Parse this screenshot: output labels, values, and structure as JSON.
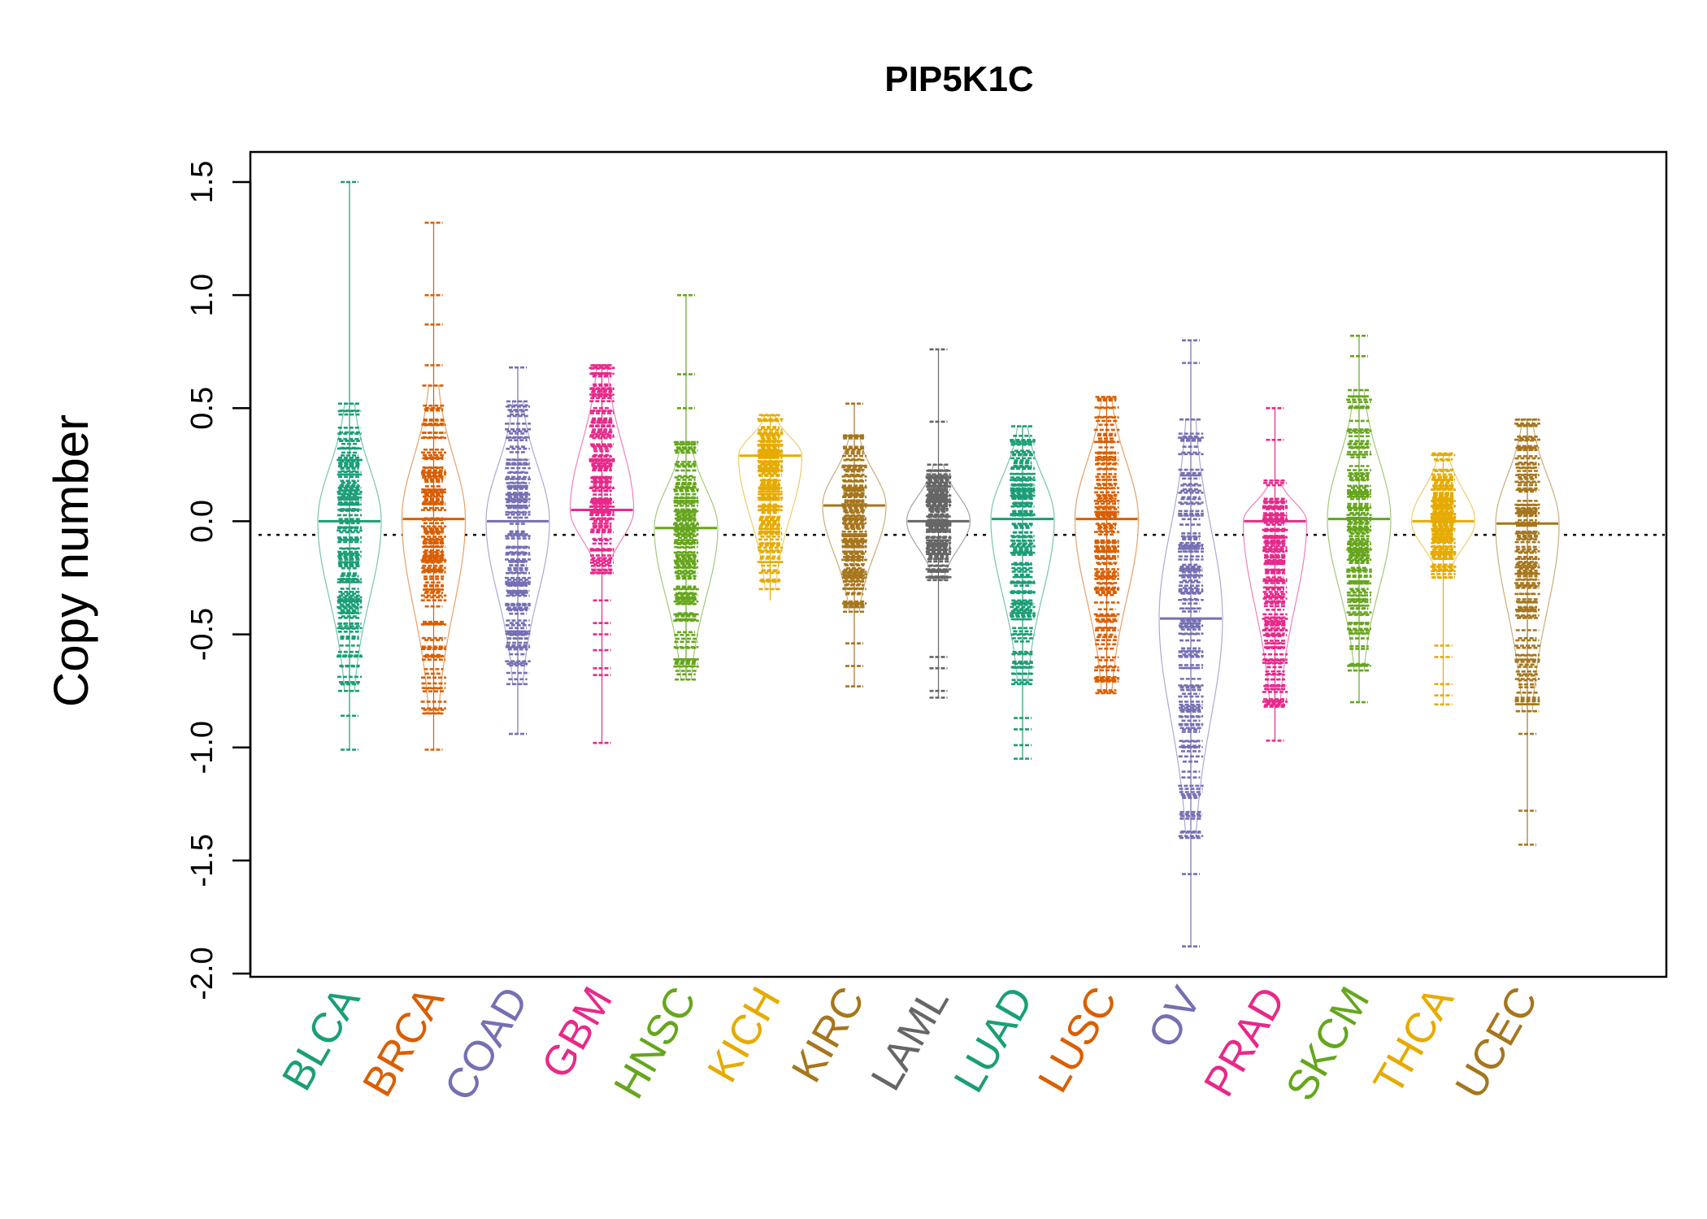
{
  "chart_data": {
    "type": "beanplot",
    "title": "PIP5K1C",
    "xlabel": "",
    "ylabel": "Copy number",
    "ylim": [
      -2.0,
      1.6
    ],
    "yticks": [
      -2.0,
      -1.5,
      -1.0,
      -0.5,
      0.0,
      0.5,
      1.0,
      1.5
    ],
    "ytick_labels": [
      "-2.0",
      "-1.5",
      "-1.0",
      "-0.5",
      "0.0",
      "0.5",
      "1.0",
      "1.5"
    ],
    "reference_line": -0.06,
    "categories": [
      "BLCA",
      "BRCA",
      "COAD",
      "GBM",
      "HNSC",
      "KICH",
      "KIRC",
      "LAML",
      "LUAD",
      "LUSC",
      "OV",
      "PRAD",
      "SKCM",
      "THCA",
      "UCEC"
    ],
    "series": [
      {
        "name": "BLCA",
        "color": "#1B9E77",
        "median": 0.0,
        "min": -1.01,
        "max": 1.5,
        "core": [
          -0.75,
          0.52
        ],
        "outliers": [
          1.5,
          -0.86,
          -1.01
        ]
      },
      {
        "name": "BRCA",
        "color": "#D95F02",
        "median": 0.01,
        "min": -1.01,
        "max": 1.32,
        "core": [
          -0.85,
          0.6
        ],
        "outliers": [
          1.32,
          1.0,
          0.87,
          0.69,
          -1.01
        ]
      },
      {
        "name": "COAD",
        "color": "#7570B3",
        "median": 0.0,
        "min": -0.94,
        "max": 0.68,
        "core": [
          -0.72,
          0.53
        ],
        "outliers": [
          0.68,
          -0.94
        ]
      },
      {
        "name": "GBM",
        "color": "#E7298A",
        "median": 0.05,
        "min": -0.98,
        "max": 0.69,
        "core": [
          -0.23,
          0.69
        ],
        "outliers": [
          -0.35,
          -0.45,
          -0.5,
          -0.57,
          -0.65,
          -0.68,
          -0.98
        ]
      },
      {
        "name": "HNSC",
        "color": "#66A61E",
        "median": -0.03,
        "min": -0.7,
        "max": 1.0,
        "core": [
          -0.7,
          0.35
        ],
        "outliers": [
          1.0,
          0.65,
          0.5
        ]
      },
      {
        "name": "KICH",
        "color": "#E6AB02",
        "median": 0.29,
        "min": -0.35,
        "max": 0.47,
        "core": [
          -0.3,
          0.47
        ],
        "outliers": []
      },
      {
        "name": "KIRC",
        "color": "#A6761D",
        "median": 0.07,
        "min": -0.73,
        "max": 0.52,
        "core": [
          -0.4,
          0.38
        ],
        "outliers": [
          0.52,
          -0.54,
          -0.64,
          -0.73
        ]
      },
      {
        "name": "LAML",
        "color": "#666666",
        "median": 0.0,
        "min": -0.78,
        "max": 0.76,
        "core": [
          -0.26,
          0.25
        ],
        "outliers": [
          0.76,
          0.44,
          -0.6,
          -0.65,
          -0.75,
          -0.78
        ]
      },
      {
        "name": "LUAD",
        "color": "#1B9E77",
        "median": 0.01,
        "min": -1.05,
        "max": 0.42,
        "core": [
          -0.72,
          0.42
        ],
        "outliers": [
          -0.87,
          -0.92,
          -0.99,
          -1.05
        ]
      },
      {
        "name": "LUSC",
        "color": "#D95F02",
        "median": 0.01,
        "min": -0.76,
        "max": 0.55,
        "core": [
          -0.76,
          0.55
        ],
        "outliers": []
      },
      {
        "name": "OV",
        "color": "#7570B3",
        "median": -0.43,
        "min": -1.88,
        "max": 0.8,
        "core": [
          -1.4,
          0.45
        ],
        "outliers": [
          0.8,
          0.7,
          -1.56,
          -1.88
        ]
      },
      {
        "name": "PRAD",
        "color": "#E7298A",
        "median": 0.0,
        "min": -0.97,
        "max": 0.5,
        "core": [
          -0.82,
          0.18
        ],
        "outliers": [
          0.5,
          0.36,
          -0.97
        ]
      },
      {
        "name": "SKCM",
        "color": "#66A61E",
        "median": 0.01,
        "min": -0.8,
        "max": 0.82,
        "core": [
          -0.66,
          0.58
        ],
        "outliers": [
          0.82,
          0.73,
          -0.8
        ]
      },
      {
        "name": "THCA",
        "color": "#E6AB02",
        "median": 0.0,
        "min": -0.81,
        "max": 0.3,
        "core": [
          -0.25,
          0.3
        ],
        "outliers": [
          -0.55,
          -0.6,
          -0.72,
          -0.77,
          -0.81
        ]
      },
      {
        "name": "UCEC",
        "color": "#A6761D",
        "median": -0.01,
        "min": -1.43,
        "max": 0.45,
        "core": [
          -0.84,
          0.45
        ],
        "outliers": [
          -0.94,
          -1.28,
          -1.43
        ]
      }
    ]
  }
}
